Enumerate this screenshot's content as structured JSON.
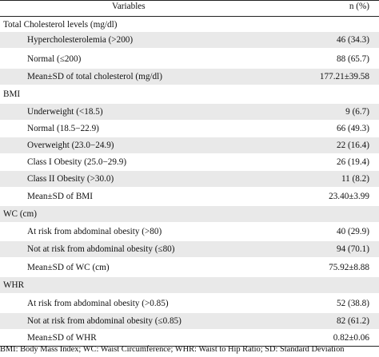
{
  "table": {
    "header": {
      "variables": "Variables",
      "n_pct": "n (%)"
    },
    "sections": [
      {
        "title": "Total Cholesterol levels (mg/dl)",
        "rows": [
          {
            "label": "Hypercholesterolemia (>200)",
            "value": "46 (34.3)"
          },
          {
            "label": "Normal (≤200)",
            "value": "88 (65.7)"
          },
          {
            "label": "Mean±SD of total cholesterol (mg/dl)",
            "value": "177.21±39.58"
          }
        ]
      },
      {
        "title": "BMI",
        "rows": [
          {
            "label": "Underweight (<18.5)",
            "value": "9 (6.7)"
          },
          {
            "label": "Normal (18.5−22.9)",
            "value": "66 (49.3)"
          },
          {
            "label": "Overweight (23.0−24.9)",
            "value": "22 (16.4)"
          },
          {
            "label": "Class I Obesity (25.0−29.9)",
            "value": "26 (19.4)"
          },
          {
            "label": "Class II Obesity (>30.0)",
            "value": "11 (8.2)"
          },
          {
            "label": "Mean±SD of BMI",
            "value": "23.40±3.99"
          }
        ]
      },
      {
        "title": "WC (cm)",
        "rows": [
          {
            "label": "At risk from abdominal obesity (>80)",
            "value": "40 (29.9)"
          },
          {
            "label": "Not at risk from abdominal obesity (≤80)",
            "value": "94 (70.1)"
          },
          {
            "label": "Mean±SD of WC (cm)",
            "value": "75.92±8.88"
          }
        ]
      },
      {
        "title": "WHR",
        "rows": [
          {
            "label": "At risk from abdominal obesity (>0.85)",
            "value": "52 (38.8)"
          },
          {
            "label": "Not at risk from abdominal obesity (≤0.85)",
            "value": "82 (61.2)"
          },
          {
            "label": "Mean±SD of WHR",
            "value": "0.82±0.06"
          }
        ]
      }
    ],
    "footnote": "BMI: Body Mass Index; WC: Waist Circumference; WHR: Waist to Hip Ratio; SD: Standard Deviation"
  }
}
